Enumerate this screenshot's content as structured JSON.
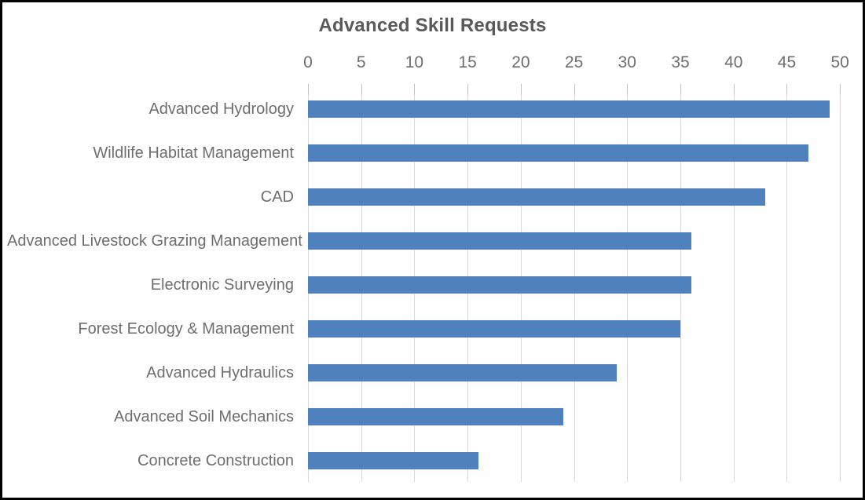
{
  "chart_data": {
    "type": "bar",
    "orientation": "horizontal",
    "title": "Advanced Skill Requests",
    "categories": [
      "Advanced Hydrology",
      "Wildlife Habitat Management",
      "CAD",
      "Advanced Livestock Grazing Management",
      "Electronic Surveying",
      "Forest Ecology & Management",
      "Advanced Hydraulics",
      "Advanced Soil Mechanics",
      "Concrete Construction"
    ],
    "values": [
      49,
      47,
      43,
      36,
      36,
      35,
      29,
      24,
      16
    ],
    "xlabel": "",
    "ylabel": "",
    "xlim": [
      0,
      50
    ],
    "x_ticks": [
      0,
      5,
      10,
      15,
      20,
      25,
      30,
      35,
      40,
      45,
      50
    ],
    "axis_position": "top",
    "grid": true,
    "legend": false,
    "colors": {
      "bar": "#4f81bd",
      "gridline": "#d9d9d9",
      "tick_mark": "#c2c2c2",
      "title_text": "#595959",
      "label_text": "#6e6e6e",
      "background": "#ffffff",
      "frame_border": "#000000"
    }
  }
}
